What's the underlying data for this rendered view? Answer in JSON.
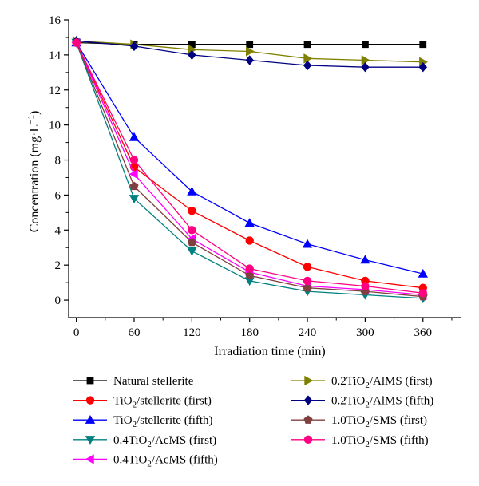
{
  "chart_data": {
    "type": "line",
    "title": "",
    "xlabel": "Irradiation time (min)",
    "ylabel": "Concentration (mg·L",
    "ylabel_sup": "−1",
    "ylabel_end": ")",
    "xlim": [
      -8,
      400
    ],
    "ylim": [
      -1,
      16
    ],
    "x": [
      0,
      60,
      120,
      180,
      240,
      300,
      360
    ],
    "x_ticks": [
      "0",
      "60",
      "120",
      "180",
      "240",
      "300",
      "360"
    ],
    "y_ticks": [
      "0",
      "2",
      "4",
      "6",
      "8",
      "10",
      "12",
      "14",
      "16"
    ],
    "grid": false,
    "legend_placement": "bottom",
    "series": [
      {
        "name": "Natural stellerite",
        "label": {
          "pre": "Natural stellerite",
          "sub": "",
          "post": ""
        },
        "color": "#000000",
        "marker": "square",
        "values": [
          14.7,
          14.6,
          14.6,
          14.6,
          14.6,
          14.6,
          14.6
        ]
      },
      {
        "name": "TiO2/stellerite (first)",
        "label": {
          "pre": "TiO",
          "sub": "2",
          "post": "/stellerite (first)"
        },
        "color": "#ff0000",
        "marker": "circle",
        "values": [
          14.7,
          7.6,
          5.1,
          3.4,
          1.9,
          1.1,
          0.7
        ]
      },
      {
        "name": "TiO2/stellerite (fifth)",
        "label": {
          "pre": "TiO",
          "sub": "2",
          "post": "/stellerite (fifth)"
        },
        "color": "#0000ff",
        "marker": "triangle-up",
        "values": [
          14.7,
          9.3,
          6.2,
          4.4,
          3.2,
          2.3,
          1.5
        ]
      },
      {
        "name": "0.4TiO2/AcMS (first)",
        "label": {
          "pre": "0.4TiO",
          "sub": "2",
          "post": "/AcMS (first)"
        },
        "color": "#008080",
        "marker": "triangle-down",
        "values": [
          14.7,
          5.8,
          2.8,
          1.1,
          0.5,
          0.3,
          0.1
        ]
      },
      {
        "name": "0.4TiO2/AcMS (fifth)",
        "label": {
          "pre": "0.4TiO",
          "sub": "2",
          "post": "/AcMS (fifth)"
        },
        "color": "#ff00ff",
        "marker": "triangle-left",
        "values": [
          14.7,
          7.2,
          3.5,
          1.6,
          0.8,
          0.6,
          0.3
        ]
      },
      {
        "name": "0.2TiO2/AlMS (first)",
        "label": {
          "pre": "0.2TiO",
          "sub": "2",
          "post": "/AlMS (first)"
        },
        "color": "#808000",
        "marker": "triangle-right",
        "values": [
          14.8,
          14.6,
          14.3,
          14.2,
          13.8,
          13.7,
          13.6
        ]
      },
      {
        "name": "0.2TiO2/AlMS (fifth)",
        "label": {
          "pre": "0.2TiO",
          "sub": "2",
          "post": "/AlMS (fifth)"
        },
        "color": "#000080",
        "marker": "diamond",
        "values": [
          14.8,
          14.5,
          14.0,
          13.7,
          13.4,
          13.3,
          13.3
        ]
      },
      {
        "name": "1.0TiO2/SMS (first)",
        "label": {
          "pre": "1.0TiO",
          "sub": "2",
          "post": "/SMS (first)"
        },
        "color": "#804040",
        "marker": "pentagon",
        "values": [
          14.7,
          6.5,
          3.3,
          1.4,
          0.7,
          0.5,
          0.2
        ]
      },
      {
        "name": "1.0TiO2/SMS (fifth)",
        "label": {
          "pre": "1.0TiO",
          "sub": "2",
          "post": "/SMS (fifth)"
        },
        "color": "#ff0080",
        "marker": "circle",
        "values": [
          14.7,
          8.0,
          4.0,
          1.8,
          1.1,
          0.8,
          0.4
        ]
      }
    ]
  }
}
